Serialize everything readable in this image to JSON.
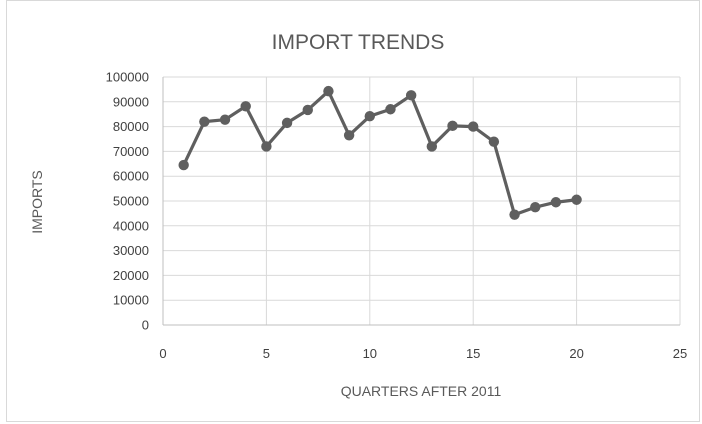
{
  "chart_data": {
    "type": "scatter",
    "title": "IMPORT TRENDS",
    "xlabel": "QUARTERS AFTER 2011",
    "ylabel": "IMPORTS",
    "xlim": [
      0,
      25
    ],
    "ylim": [
      0,
      100000
    ],
    "x_ticks": [
      0,
      5,
      10,
      15,
      20,
      25
    ],
    "y_ticks": [
      0,
      10000,
      20000,
      30000,
      40000,
      50000,
      60000,
      70000,
      80000,
      90000,
      100000
    ],
    "grid": true,
    "legend": "none",
    "series": [
      {
        "color": "#5f5f5f",
        "style": "line-with-markers",
        "points": [
          {
            "x": 1,
            "y": 64500
          },
          {
            "x": 2,
            "y": 82000
          },
          {
            "x": 3,
            "y": 82800
          },
          {
            "x": 4,
            "y": 88200
          },
          {
            "x": 5,
            "y": 72000
          },
          {
            "x": 6,
            "y": 81500
          },
          {
            "x": 7,
            "y": 86700
          },
          {
            "x": 8,
            "y": 94300
          },
          {
            "x": 9,
            "y": 76500
          },
          {
            "x": 10,
            "y": 84200
          },
          {
            "x": 11,
            "y": 87000
          },
          {
            "x": 12,
            "y": 92600
          },
          {
            "x": 13,
            "y": 72000
          },
          {
            "x": 14,
            "y": 80300
          },
          {
            "x": 15,
            "y": 80000
          },
          {
            "x": 16,
            "y": 73900
          },
          {
            "x": 17,
            "y": 44500
          },
          {
            "x": 18,
            "y": 47500
          },
          {
            "x": 19,
            "y": 49500
          },
          {
            "x": 20,
            "y": 50500
          }
        ]
      }
    ]
  }
}
